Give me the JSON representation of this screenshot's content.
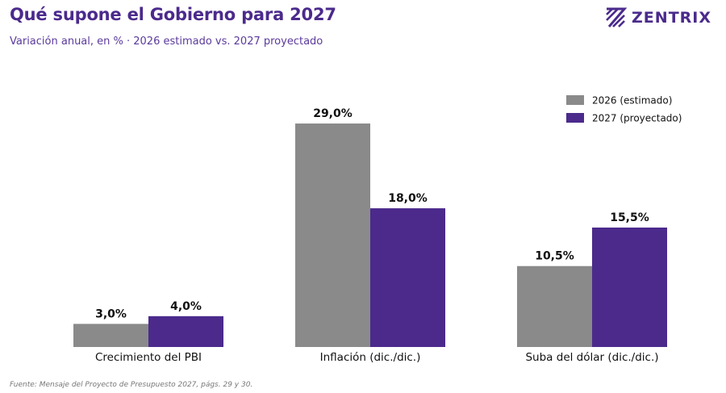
{
  "brand": {
    "name": "ZENTRIX",
    "logo_icon": "zentrix-z-logo-icon"
  },
  "chart_data": {
    "type": "bar",
    "title": "Qué supone el Gobierno para 2027",
    "subtitle": "Variación anual, en % · 2026 estimado vs. 2027 proyectado",
    "categories": [
      "Crecimiento del PBI",
      "Inflación (dic./dic.)",
      "Suba del dólar (dic./dic.)"
    ],
    "series": [
      {
        "name": "2026 (estimado)",
        "values": [
          3.0,
          29.0,
          10.5
        ],
        "labels": [
          "3,0%",
          "29,0%",
          "10,5%"
        ],
        "color": "#8A8A8A"
      },
      {
        "name": "2027 (proyectado)",
        "values": [
          4.0,
          18.0,
          15.5
        ],
        "labels": [
          "4,0%",
          "18,0%",
          "15,5%"
        ],
        "color": "#4B2A8C"
      }
    ],
    "ylim": [
      0,
      30
    ],
    "xlabel": "",
    "ylabel": "",
    "grid": false,
    "legend": "top-right"
  },
  "footnote": "Fuente: Mensaje del Proyecto de Presupuesto 2027, págs. 29 y 30."
}
